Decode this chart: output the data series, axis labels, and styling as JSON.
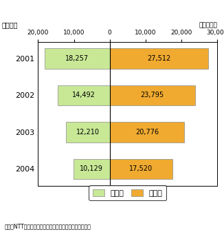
{
  "years": [
    2001,
    2002,
    2003,
    2004
  ],
  "juutaku": [
    18257,
    14492,
    12210,
    10129
  ],
  "jimu": [
    27512,
    23795,
    20776,
    17520
  ],
  "juutaku_color": "#c8e896",
  "jimu_color": "#f0aa30",
  "juutaku_label": "住宅用",
  "jimu_label": "事務用",
  "unit_label": "（百万回）",
  "ylabel": "（年度）",
  "xlim": [
    -20000,
    30000
  ],
  "xticks": [
    -20000,
    -10000,
    0,
    10000,
    20000,
    30000
  ],
  "xtick_labels": [
    "20,000",
    "10,000",
    "0",
    "10,000",
    "20,000",
    "30,000"
  ],
  "bar_height": 0.55,
  "source_text": "東・西NTT「電気通信役務通信量等状況報告」により作成",
  "bg_color": "#ffffff",
  "border_color": "#aaaaaa"
}
